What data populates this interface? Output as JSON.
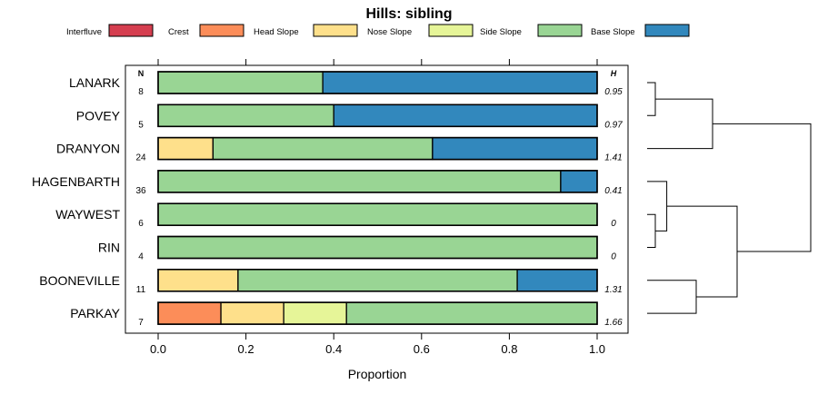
{
  "chart_data": {
    "type": "bar",
    "orientation": "horizontal",
    "stacked": true,
    "title": "Hills: sibling",
    "xlabel": "Proportion",
    "ylabel": "",
    "xlim": [
      -0.07,
      1.07
    ],
    "x_ticks": [
      "0.0",
      "0.2",
      "0.4",
      "0.6",
      "0.8",
      "1.0"
    ],
    "n_label": "N",
    "h_label": "H",
    "legend_position": "top",
    "legend": [
      {
        "name": "Interfluve",
        "color": "#d53e4f"
      },
      {
        "name": "Crest",
        "color": "#fc8d59"
      },
      {
        "name": "Head Slope",
        "color": "#fee08b"
      },
      {
        "name": "Nose Slope",
        "color": "#e6f598"
      },
      {
        "name": "Side Slope",
        "color": "#99d594"
      },
      {
        "name": "Base Slope",
        "color": "#3288bd"
      }
    ],
    "categories": [
      "LANARK",
      "POVEY",
      "DRANYON",
      "HAGENBARTH",
      "WAYWEST",
      "RIN",
      "BOONEVILLE",
      "PARKAY"
    ],
    "n": [
      "8",
      "5",
      "24",
      "36",
      "6",
      "4",
      "11",
      "7"
    ],
    "h": [
      "0.95",
      "0.97",
      "1.41",
      "0.41",
      "0",
      "0",
      "1.31",
      "1.66"
    ],
    "series": [
      {
        "name": "Interfluve",
        "values": [
          0,
          0,
          0,
          0,
          0,
          0,
          0,
          0
        ]
      },
      {
        "name": "Crest",
        "values": [
          0,
          0,
          0,
          0,
          0,
          0,
          0,
          0.143
        ]
      },
      {
        "name": "Head Slope",
        "values": [
          0,
          0,
          0.125,
          0,
          0,
          0,
          0.182,
          0.143
        ]
      },
      {
        "name": "Nose Slope",
        "values": [
          0,
          0,
          0,
          0,
          0,
          0,
          0,
          0.143
        ]
      },
      {
        "name": "Side Slope",
        "values": [
          0.375,
          0.4,
          0.5,
          0.917,
          1,
          1,
          0.636,
          0.571
        ]
      },
      {
        "name": "Base Slope",
        "values": [
          0.625,
          0.6,
          0.375,
          0.083,
          0,
          0,
          0.182,
          0
        ]
      }
    ],
    "dendrogram": {
      "leaf_order": [
        "LANARK",
        "POVEY",
        "DRANYON",
        "HAGENBARTH",
        "WAYWEST",
        "RIN",
        "BOONEVILLE",
        "PARKAY"
      ],
      "merges": [
        {
          "left": "LANARK",
          "right": "POVEY",
          "height": 0.05
        },
        {
          "left": "LANARK+POVEY",
          "right": "DRANYON",
          "height": 0.4
        },
        {
          "left": "WAYWEST",
          "right": "RIN",
          "height": 0.05
        },
        {
          "left": "HAGENBARTH",
          "right": "WAYWEST+RIN",
          "height": 0.12
        },
        {
          "left": "BOONEVILLE",
          "right": "PARKAY",
          "height": 0.3
        },
        {
          "left": "HAGENBARTH+WAYWEST+RIN",
          "right": "BOONEVILLE+PARKAY",
          "height": 0.55
        },
        {
          "left": "LANARK+POVEY+DRANYON",
          "right": "HAGENBARTH+WAYWEST+RIN+BOONEVILLE+PARKAY",
          "height": 1.0
        }
      ]
    }
  }
}
